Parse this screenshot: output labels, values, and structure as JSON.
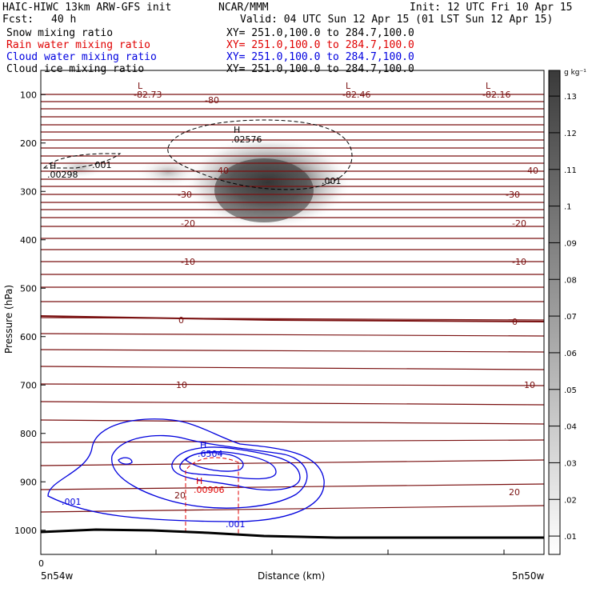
{
  "header": {
    "title": "HAIC-HIWC 13km ARW-GFS init",
    "institution": "NCAR/MMM",
    "init": "Init: 12 UTC Fri 10 Apr 15",
    "fcst_label": "Fcst:",
    "fcst_value": "40 h",
    "valid": "Valid: 04 UTC Sun 12 Apr 15 (01 LST Sun 12 Apr 15)",
    "fields": [
      {
        "name": "Snow mixing ratio",
        "xy": "XY= 251.0,100.0 to 284.7,100.0",
        "color": "#000000"
      },
      {
        "name": "Rain water mixing ratio",
        "xy": "XY= 251.0,100.0 to 284.7,100.0",
        "color": "#e00000"
      },
      {
        "name": "Cloud water mixing ratio",
        "xy": "XY= 251.0,100.0 to 284.7,100.0",
        "color": "#0000e0"
      },
      {
        "name": "Cloud ice mixing ratio",
        "xy": "XY= 251.0,100.0 to 284.7,100.0",
        "color": "#000000"
      }
    ]
  },
  "colorbar": {
    "unit": "g kg⁻¹",
    "ticks": [
      ".13",
      ".12",
      ".11",
      ".1",
      ".09",
      ".08",
      ".07",
      ".06",
      ".05",
      ".04",
      ".03",
      ".02",
      ".01"
    ]
  },
  "chart_data": {
    "type": "cross-section",
    "xlabel": "Distance (km)",
    "ylabel": "Pressure (hPa)",
    "x_tick_label": "0",
    "x_left_label": "5n54w",
    "x_right_label": "5n50w",
    "y_ticks": [
      100,
      200,
      300,
      400,
      500,
      600,
      700,
      800,
      900,
      1000
    ],
    "ylim": [
      50,
      1050
    ],
    "temperature_labels": [
      "-80",
      "-40",
      "-30",
      "-20",
      "-10",
      "0",
      "10",
      "20"
    ],
    "extrema_labels": [
      {
        "type": "L",
        "value": "-82.73",
        "color": "#8b1a1a"
      },
      {
        "type": "L",
        "value": "-82.46",
        "color": "#8b1a1a"
      },
      {
        "type": "L",
        "value": "-82.16",
        "color": "#8b1a1a"
      },
      {
        "type": "H",
        "value": ".02576",
        "color": "#000000"
      },
      {
        "type": "H",
        "value": ".00298",
        "color": "#000000"
      },
      {
        "type": "H",
        "value": ".6504",
        "color": "#0000e0"
      },
      {
        "type": "H",
        "value": ".00906",
        "color": "#e00000"
      }
    ],
    "contour_labels": [
      {
        "value": ".001",
        "color": "#000000"
      },
      {
        "value": ".001",
        "color": "#000000"
      },
      {
        "value": ".001",
        "color": "#0000e0"
      },
      {
        "value": ".001",
        "color": "#0000e0"
      }
    ]
  }
}
